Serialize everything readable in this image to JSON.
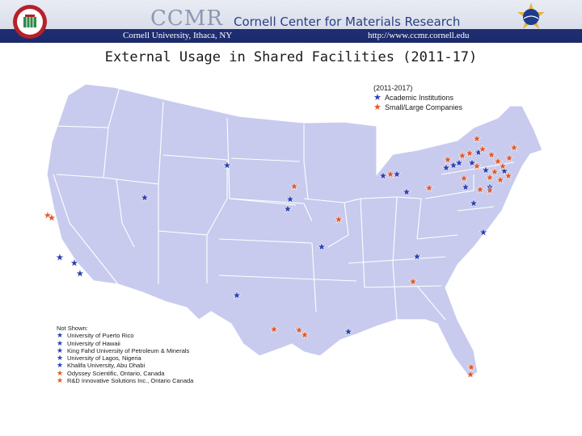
{
  "header": {
    "brand": "CCMR",
    "title": "Cornell Center for Materials Research",
    "left_subtitle": "Cornell University, Ithaca, NY",
    "right_subtitle": "http://www.ccmr.cornell.edu",
    "left_logo_icon": "ccmr-seal-icon",
    "right_logo_icon": "nsf-logo-icon"
  },
  "slide_title": "External Usage in Shared Facilities (2011-17)",
  "legend": {
    "period": "(2011-2017)",
    "items": [
      {
        "label": "Academic Institutions",
        "color": "#2b3fb0",
        "icon": "star-icon"
      },
      {
        "label": "Small/Large Companies",
        "color": "#e0582a",
        "icon": "star-icon"
      }
    ]
  },
  "not_shown": {
    "heading": "Not Shown:",
    "items": [
      {
        "label": "University of Puerto Rico",
        "color": "#2b3fb0"
      },
      {
        "label": "University of Hawaii",
        "color": "#2b3fb0"
      },
      {
        "label": "King Fahd University of Petroleum & Minerals",
        "color": "#2b3fb0"
      },
      {
        "label": "University of Lagos, Nigeria",
        "color": "#2b3fb0"
      },
      {
        "label": "Khalifa University, Abu Dhabi",
        "color": "#2b3fb0"
      },
      {
        "label": "Odyssey Scientific, Ontario, Canada",
        "color": "#e0582a"
      },
      {
        "label": "R&D Innovative Solutions Inc., Ontario Canada",
        "color": "#e0582a"
      }
    ]
  },
  "colors": {
    "map_fill": "#c8cbee",
    "state_border": "#ffffff",
    "academic": "#2b3fb0",
    "company": "#e0582a",
    "header_band": "#1f2f73"
  }
}
